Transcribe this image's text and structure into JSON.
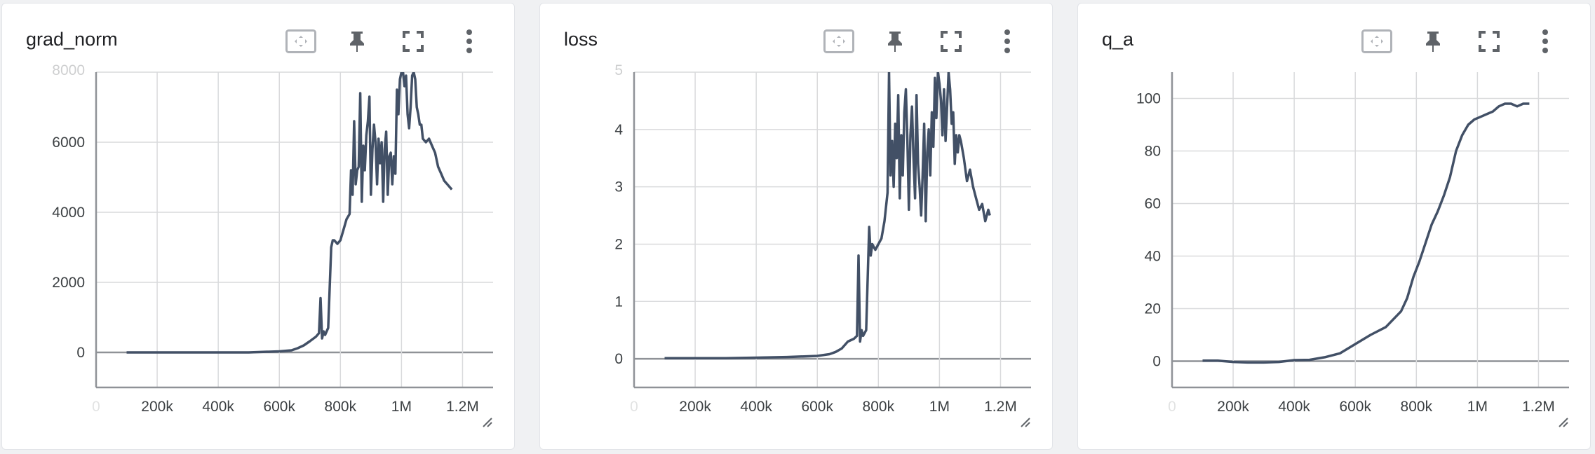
{
  "colors": {
    "line": "#425066",
    "grid": "#d9dadc",
    "axis": "#8f9297",
    "icon": "#5f6368"
  },
  "toolbar": {
    "fit_icon": "fit-domain-icon",
    "pin_icon": "pin-icon",
    "fullscreen_icon": "fullscreen-icon",
    "menu_icon": "more-vert-icon"
  },
  "chart_data": [
    {
      "type": "line",
      "title": "grad_norm",
      "xlabel": "",
      "ylabel": "",
      "xlim": [
        0,
        1300000
      ],
      "ylim": [
        -1000,
        8000
      ],
      "x_ticks": [
        0,
        200000,
        400000,
        600000,
        800000,
        1000000,
        1200000
      ],
      "x_tick_labels": [
        "0",
        "200k",
        "400k",
        "600k",
        "800k",
        "1M",
        "1.2M"
      ],
      "y_ticks": [
        0,
        2000,
        4000,
        6000,
        8000
      ],
      "y_tick_labels": [
        "0",
        "2000",
        "4000",
        "6000",
        "8000"
      ],
      "grid": true,
      "series": [
        {
          "x": [
            100000,
            200000,
            300000,
            400000,
            500000,
            600000,
            640000,
            660000,
            680000,
            700000,
            720000,
            730000,
            735000,
            740000,
            745000,
            750000,
            760000,
            770000,
            775000,
            780000,
            790000,
            800000,
            810000,
            820000,
            830000,
            835000,
            840000,
            845000,
            850000,
            855000,
            860000,
            865000,
            870000,
            875000,
            880000,
            885000,
            890000,
            895000,
            900000,
            905000,
            910000,
            915000,
            920000,
            925000,
            930000,
            935000,
            940000,
            945000,
            950000,
            955000,
            960000,
            965000,
            970000,
            975000,
            980000,
            985000,
            990000,
            995000,
            1000000,
            1005000,
            1010000,
            1015000,
            1020000,
            1025000,
            1030000,
            1035000,
            1040000,
            1045000,
            1050000,
            1055000,
            1060000,
            1065000,
            1070000,
            1080000,
            1090000,
            1100000,
            1110000,
            1120000,
            1130000,
            1140000,
            1150000,
            1160000,
            1165000
          ],
          "y": [
            0,
            0,
            0,
            0,
            0,
            30,
            60,
            120,
            200,
            320,
            450,
            550,
            1550,
            400,
            600,
            500,
            700,
            3000,
            3200,
            3200,
            3100,
            3200,
            3500,
            3800,
            3950,
            5200,
            4500,
            6600,
            4800,
            5200,
            5300,
            7400,
            4300,
            5900,
            5200,
            6200,
            6600,
            7300,
            4500,
            5800,
            6500,
            6000,
            4800,
            6100,
            5400,
            6000,
            4300,
            5800,
            6300,
            4500,
            5600,
            5700,
            4800,
            5600,
            5100,
            7500,
            6800,
            7800,
            8000,
            8000,
            7600,
            7900,
            6800,
            6400,
            7000,
            7900,
            8000,
            7800,
            7000,
            6800,
            6500,
            6500,
            6100,
            6000,
            6100,
            5900,
            5700,
            5300,
            5100,
            4900,
            4800,
            4700,
            4650
          ]
        }
      ]
    },
    {
      "type": "line",
      "title": "loss",
      "xlabel": "",
      "ylabel": "",
      "xlim": [
        0,
        1300000
      ],
      "ylim": [
        -0.5,
        5
      ],
      "x_ticks": [
        0,
        200000,
        400000,
        600000,
        800000,
        1000000,
        1200000
      ],
      "x_tick_labels": [
        "0",
        "200k",
        "400k",
        "600k",
        "800k",
        "1M",
        "1.2M"
      ],
      "y_ticks": [
        0,
        1,
        2,
        3,
        4,
        5
      ],
      "y_tick_labels": [
        "0",
        "1",
        "2",
        "3",
        "4",
        "5"
      ],
      "grid": true,
      "series": [
        {
          "x": [
            100000,
            200000,
            300000,
            400000,
            500000,
            600000,
            640000,
            660000,
            680000,
            700000,
            720000,
            730000,
            735000,
            740000,
            745000,
            750000,
            760000,
            770000,
            775000,
            780000,
            790000,
            800000,
            810000,
            820000,
            830000,
            835000,
            840000,
            845000,
            850000,
            855000,
            860000,
            865000,
            870000,
            875000,
            880000,
            885000,
            890000,
            895000,
            900000,
            905000,
            910000,
            915000,
            920000,
            925000,
            930000,
            935000,
            940000,
            945000,
            950000,
            955000,
            960000,
            965000,
            970000,
            975000,
            980000,
            985000,
            990000,
            995000,
            1000000,
            1005000,
            1010000,
            1015000,
            1020000,
            1025000,
            1030000,
            1035000,
            1040000,
            1045000,
            1050000,
            1055000,
            1060000,
            1065000,
            1070000,
            1080000,
            1090000,
            1100000,
            1110000,
            1120000,
            1130000,
            1140000,
            1150000,
            1160000,
            1165000
          ],
          "y": [
            0.01,
            0.01,
            0.01,
            0.02,
            0.03,
            0.05,
            0.08,
            0.12,
            0.18,
            0.3,
            0.35,
            0.4,
            1.8,
            0.3,
            0.5,
            0.4,
            0.5,
            2.3,
            1.8,
            2.0,
            1.9,
            2.0,
            2.1,
            2.4,
            2.9,
            5.0,
            3.2,
            3.8,
            3.0,
            4.1,
            3.5,
            4.6,
            2.8,
            3.9,
            3.2,
            4.3,
            4.7,
            3.8,
            2.6,
            3.9,
            4.4,
            3.5,
            2.8,
            4.6,
            3.4,
            3.0,
            2.5,
            3.2,
            4.1,
            2.4,
            3.6,
            4.0,
            3.2,
            4.3,
            3.7,
            4.9,
            4.2,
            5.0,
            4.8,
            4.5,
            3.9,
            4.7,
            3.8,
            4.4,
            5.0,
            4.7,
            4.1,
            4.3,
            3.4,
            3.9,
            3.6,
            3.9,
            3.8,
            3.5,
            3.1,
            3.3,
            3.0,
            2.8,
            2.6,
            2.7,
            2.4,
            2.6,
            2.5
          ]
        }
      ]
    },
    {
      "type": "line",
      "title": "q_a",
      "xlabel": "",
      "ylabel": "",
      "xlim": [
        0,
        1300000
      ],
      "ylim": [
        -10,
        110
      ],
      "x_ticks": [
        0,
        200000,
        400000,
        600000,
        800000,
        1000000,
        1200000
      ],
      "x_tick_labels": [
        "0",
        "200k",
        "400k",
        "600k",
        "800k",
        "1M",
        "1.2M"
      ],
      "y_ticks": [
        0,
        20,
        40,
        60,
        80,
        100
      ],
      "y_tick_labels": [
        "0",
        "20",
        "40",
        "60",
        "80",
        "100"
      ],
      "grid": true,
      "series": [
        {
          "x": [
            100000,
            150000,
            200000,
            250000,
            300000,
            350000,
            400000,
            450000,
            500000,
            550000,
            600000,
            650000,
            700000,
            750000,
            770000,
            790000,
            810000,
            830000,
            850000,
            870000,
            890000,
            910000,
            930000,
            950000,
            970000,
            990000,
            1010000,
            1030000,
            1050000,
            1070000,
            1090000,
            1110000,
            1130000,
            1150000,
            1170000
          ],
          "y": [
            0.2,
            0.2,
            -0.3,
            -0.5,
            -0.5,
            -0.3,
            0.4,
            0.5,
            1.5,
            3.0,
            6.5,
            10,
            13,
            19,
            24,
            32,
            38,
            45,
            52,
            57,
            63,
            70,
            80,
            86,
            90,
            92,
            93,
            94,
            95,
            97,
            98,
            98,
            97,
            98,
            98
          ]
        }
      ]
    }
  ]
}
